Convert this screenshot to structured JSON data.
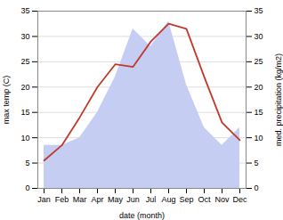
{
  "chart_data": {
    "type": "line",
    "categories": [
      "Jan",
      "Feb",
      "Mar",
      "Apr",
      "May",
      "Jun",
      "Jul",
      "Aug",
      "Sep",
      "Oct",
      "Nov",
      "Dec"
    ],
    "series": [
      {
        "type": "area",
        "axis": "y2",
        "color": "#c5cef2",
        "values": [
          8.5,
          8.5,
          10.0,
          15.0,
          22.0,
          31.5,
          28.0,
          33.0,
          20.5,
          12.0,
          8.5,
          12.0
        ]
      },
      {
        "type": "line",
        "color": "#c0392b",
        "values": [
          5.5,
          8.5,
          14.0,
          20.0,
          24.5,
          24.0,
          29.0,
          32.5,
          31.5,
          22.0,
          13.0,
          9.5
        ]
      }
    ],
    "xlabel": "date (month)",
    "ylabel": "max temp (C)",
    "y2label": "med. precipitation (kg/m2)",
    "ylim": [
      0,
      35
    ],
    "yticks": [
      0,
      5,
      10,
      15,
      20,
      25,
      30,
      35
    ],
    "y2lim": [
      0,
      35
    ],
    "y2ticks": [
      0,
      5,
      10,
      15,
      20,
      25,
      30,
      35
    ],
    "grid": true
  }
}
